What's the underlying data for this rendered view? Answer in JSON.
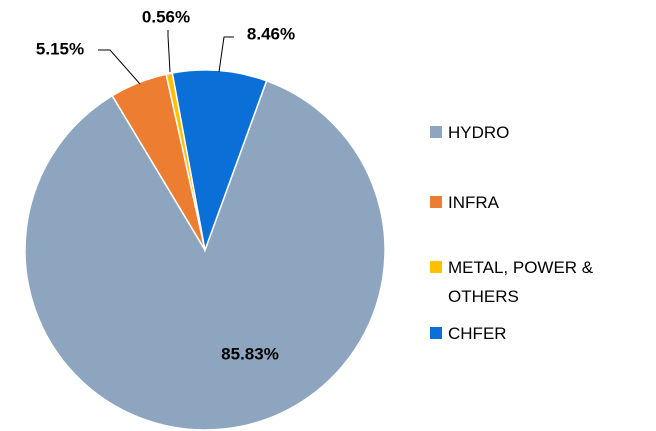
{
  "chart_data": {
    "type": "pie",
    "categories": [
      "HYDRO",
      "INFRA",
      "METAL, POWER & OTHERS",
      "CHFER"
    ],
    "values": [
      85.83,
      5.15,
      0.56,
      8.46
    ],
    "value_labels": [
      "85.83%",
      "5.15%",
      "0.56%",
      "8.46%"
    ],
    "colors": [
      "#8ea5c0",
      "#ed7d31",
      "#ffc000",
      "#0a6fd6"
    ],
    "legend": "right"
  }
}
